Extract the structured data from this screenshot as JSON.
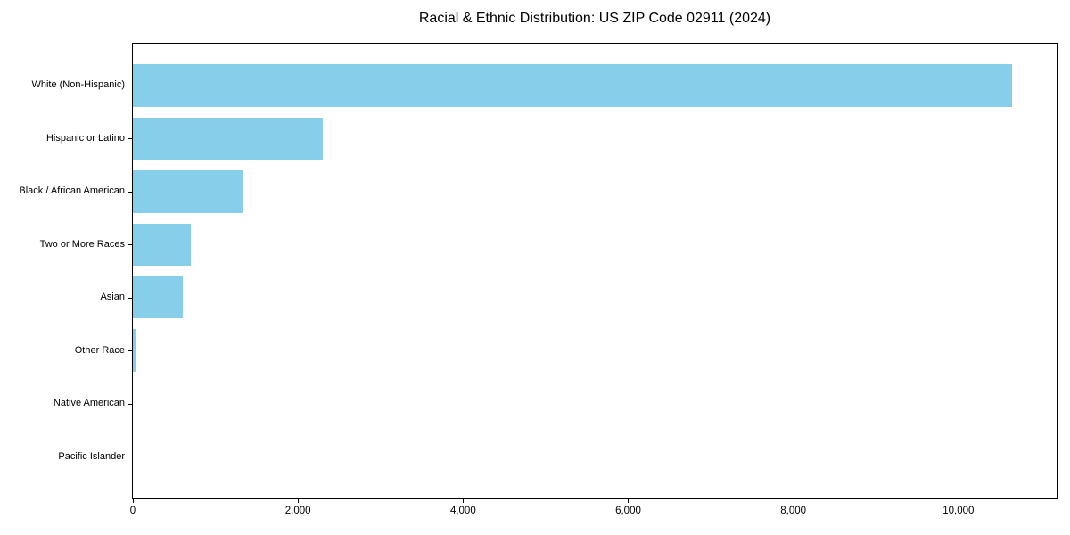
{
  "figure": {
    "background": "#ffffff"
  },
  "chart_data": {
    "type": "bar",
    "orientation": "horizontal",
    "title": "Racial & Ethnic Distribution: US ZIP Code 02911 (2024)",
    "categories": [
      "White (Non-Hispanic)",
      "Hispanic or Latino",
      "Black / African American",
      "Two or More Races",
      "Asian",
      "Other Race",
      "Native American",
      "Pacific Islander"
    ],
    "values": [
      10650,
      2300,
      1330,
      700,
      600,
      45,
      0,
      0
    ],
    "xlabel": "",
    "ylabel": "",
    "xlim": [
      0,
      11190
    ],
    "x_ticks": [
      0,
      2000,
      4000,
      6000,
      8000,
      10000
    ],
    "x_tick_labels": [
      "0",
      "2,000",
      "4,000",
      "6,000",
      "8,000",
      "10,000"
    ],
    "bar_color": "#87CEEB",
    "axis_color": "#000000",
    "text_color": "#000000",
    "grid": false,
    "legend": "none"
  }
}
